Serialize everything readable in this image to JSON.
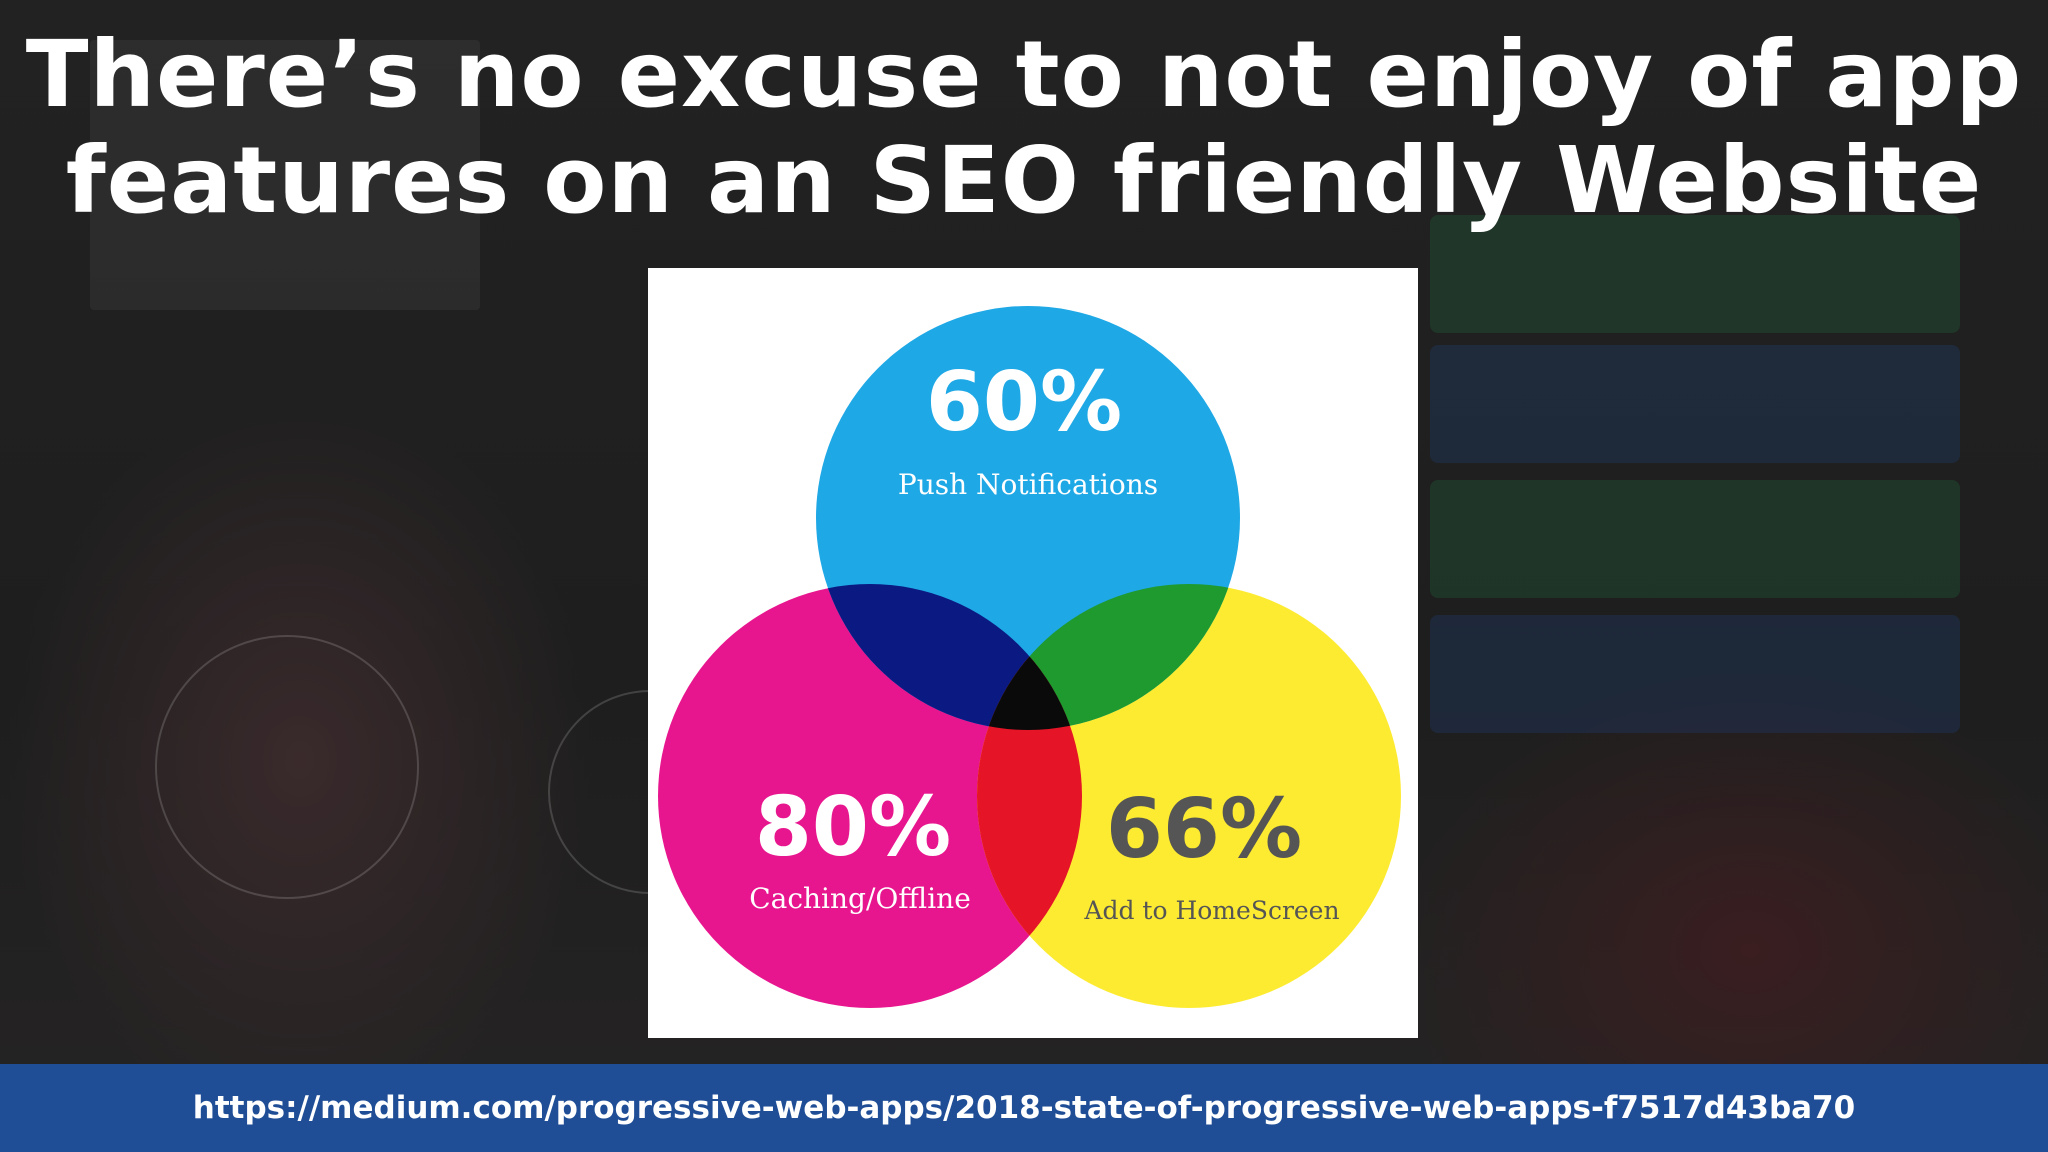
{
  "slide": {
    "title_line1": "There’s no excuse to not enjoy of app",
    "title_line2": "features on an SEO friendly Website",
    "source_url": "https://medium.com/progressive-web-apps/2018-state-of-progressive-web-apps-f7517d43ba70"
  },
  "venn": {
    "sets": [
      {
        "id": "push",
        "percent": "60%",
        "label": "Push Notifications",
        "color": "#1fa8e6",
        "text_color": "#ffffff"
      },
      {
        "id": "caching",
        "percent": "80%",
        "label": "Caching/Offline",
        "color": "#e8168e",
        "text_color": "#ffffff"
      },
      {
        "id": "homescreen",
        "percent": "66%",
        "label": "Add to HomeScreen",
        "color": "#fdeb32",
        "text_color": "#555555"
      }
    ],
    "overlap_colors": {
      "push_caching": "#0a1a82",
      "push_homescreen": "#1e9a2e",
      "caching_homescreen": "#e51426",
      "all": "#0a0a0a"
    }
  },
  "colors": {
    "footer_bar": "#1f4e96",
    "background": "#1c1c1c",
    "title_text": "#ffffff"
  }
}
